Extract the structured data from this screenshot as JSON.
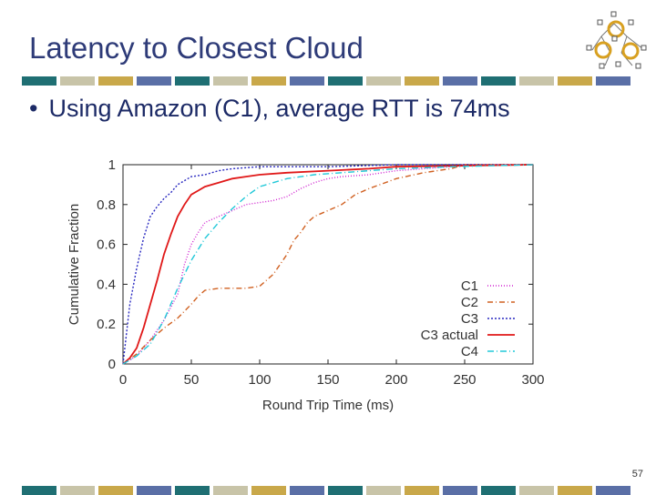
{
  "slide": {
    "title": "Latency to Closest Cloud",
    "bullet": "Using Amazon (C1), average RTT is 74ms",
    "page_number": "57"
  },
  "decor": {
    "bar_colors": [
      "#1f6f73",
      "#c8c4a8",
      "#c9a84a",
      "#5a6fa6"
    ]
  },
  "chart_data": {
    "type": "line",
    "xlabel": "Round Trip Time (ms)",
    "ylabel": "Cumulative Fraction",
    "xlim": [
      0,
      300
    ],
    "ylim": [
      0,
      1
    ],
    "xticks": [
      0,
      50,
      100,
      150,
      200,
      250,
      300
    ],
    "yticks": [
      0,
      0.2,
      0.4,
      0.6,
      0.8,
      1
    ],
    "legend_position": "inside-right",
    "series": [
      {
        "name": "C1",
        "color": "#d020d0",
        "dash": "1,2",
        "x": [
          0,
          10,
          20,
          30,
          40,
          45,
          50,
          55,
          60,
          70,
          80,
          90,
          100,
          110,
          120,
          130,
          140,
          150,
          160,
          180,
          200,
          220,
          240,
          250,
          300
        ],
        "y": [
          0,
          0.04,
          0.12,
          0.22,
          0.35,
          0.5,
          0.6,
          0.66,
          0.71,
          0.74,
          0.77,
          0.8,
          0.81,
          0.82,
          0.84,
          0.88,
          0.91,
          0.93,
          0.94,
          0.95,
          0.97,
          0.98,
          0.99,
          1,
          1
        ]
      },
      {
        "name": "C2",
        "color": "#d06020",
        "dash": "6,3,1,3",
        "x": [
          0,
          10,
          20,
          30,
          40,
          50,
          55,
          60,
          70,
          80,
          90,
          100,
          110,
          115,
          120,
          125,
          130,
          135,
          140,
          150,
          160,
          170,
          180,
          200,
          220,
          240,
          250,
          300
        ],
        "y": [
          0,
          0.05,
          0.12,
          0.18,
          0.23,
          0.3,
          0.34,
          0.37,
          0.38,
          0.38,
          0.38,
          0.39,
          0.45,
          0.5,
          0.55,
          0.62,
          0.66,
          0.71,
          0.74,
          0.77,
          0.8,
          0.85,
          0.88,
          0.93,
          0.96,
          0.98,
          1,
          1
        ]
      },
      {
        "name": "C3",
        "color": "#2828c0",
        "dash": "2,2",
        "x": [
          0,
          5,
          10,
          15,
          20,
          25,
          30,
          35,
          40,
          50,
          60,
          70,
          80,
          100,
          150,
          200,
          300
        ],
        "y": [
          0,
          0.3,
          0.48,
          0.63,
          0.74,
          0.79,
          0.83,
          0.86,
          0.9,
          0.94,
          0.95,
          0.97,
          0.98,
          0.99,
          0.99,
          1,
          1
        ]
      },
      {
        "name": "C3 actual",
        "color": "#e01818",
        "dash": "",
        "x": [
          0,
          5,
          10,
          15,
          20,
          25,
          30,
          35,
          40,
          45,
          50,
          55,
          60,
          70,
          80,
          90,
          100,
          120,
          150,
          180,
          200,
          300
        ],
        "y": [
          0,
          0.03,
          0.08,
          0.18,
          0.3,
          0.42,
          0.55,
          0.65,
          0.74,
          0.8,
          0.85,
          0.87,
          0.89,
          0.91,
          0.93,
          0.94,
          0.95,
          0.96,
          0.97,
          0.98,
          0.99,
          1
        ]
      },
      {
        "name": "C4",
        "color": "#20c8d8",
        "dash": "7,3,1,3",
        "x": [
          0,
          10,
          20,
          30,
          40,
          50,
          60,
          70,
          80,
          90,
          100,
          110,
          120,
          140,
          160,
          180,
          200,
          240,
          300
        ],
        "y": [
          0,
          0.04,
          0.1,
          0.22,
          0.38,
          0.52,
          0.63,
          0.71,
          0.78,
          0.84,
          0.89,
          0.91,
          0.93,
          0.95,
          0.96,
          0.97,
          0.98,
          0.99,
          1
        ]
      }
    ]
  }
}
